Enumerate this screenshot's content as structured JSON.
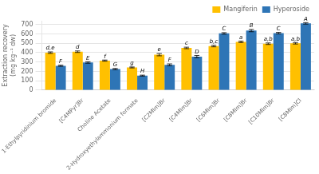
{
  "chart_data": {
    "type": "bar",
    "ylabel": "Extraction recovery\n(mg kg⁻¹ dw)",
    "categories": [
      "1-Ethylpyridinium bromide",
      "[C4MPyr]Br",
      "Choline Acetate",
      "2-Hydroxyethylammonium formate",
      "[C2MIm]Br",
      "[C4MIm]Br",
      "[C6MIm]Br",
      "[C8MIm]Br",
      "[C10MIm]Br",
      "[C8MIm]Cl"
    ],
    "series": [
      {
        "name": "Mangiferin",
        "color": "#FFC000",
        "values": [
          400,
          410,
          315,
          242,
          378,
          450,
          470,
          515,
          495,
          500
        ],
        "errors": [
          8,
          8,
          6,
          5,
          12,
          8,
          8,
          8,
          8,
          8
        ],
        "annotations": [
          "d,e",
          "d",
          "f",
          "g",
          "e",
          "c",
          "b,c",
          "a",
          "a,b",
          "a,b"
        ]
      },
      {
        "name": "Hyperoside",
        "color": "#2E75B6",
        "values": [
          260,
          295,
          225,
          155,
          270,
          358,
          605,
          635,
          608,
          712
        ],
        "errors": [
          6,
          8,
          6,
          5,
          10,
          12,
          8,
          12,
          8,
          8
        ],
        "annotations": [
          "F",
          "E",
          "G",
          "H",
          "F",
          "D",
          "C",
          "B",
          "C",
          "A"
        ]
      }
    ],
    "ylim": [
      0,
      740
    ],
    "yticks": [
      0,
      100,
      200,
      300,
      400,
      500,
      600,
      700
    ],
    "grid": true,
    "legend": "upper right"
  }
}
